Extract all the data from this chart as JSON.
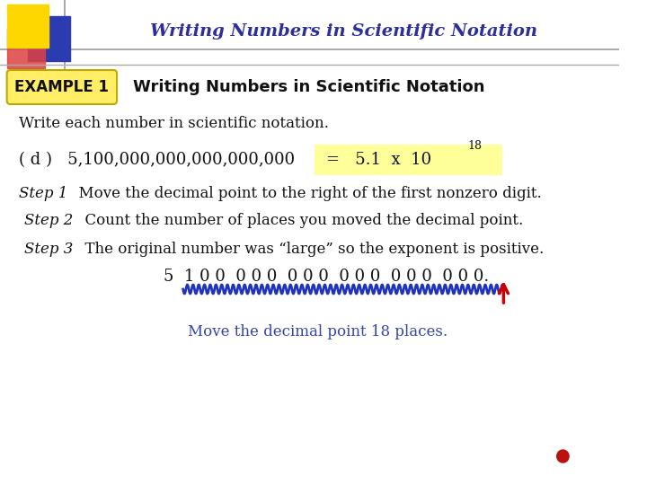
{
  "title": "Writing Numbers in Scientific Notation",
  "title_color": "#2E2E9A",
  "title_fontsize": 14,
  "bg_color": "#FFFFFF",
  "example_label": "EXAMPLE 1",
  "example_label_bg": "#FFEE66",
  "example_subtitle": "Writing Numbers in Scientific Notation",
  "write_prompt": "Write each number in scientific notation.",
  "problem_label": "( d )",
  "problem_number": "5,100,000,000,000,000,000",
  "result_box_bg": "#FFFF99",
  "result_prefix": "=   5.1  x  10",
  "exponent": "18",
  "step1_label": "Step 1",
  "step1_text": "  Move the decimal point to the right of the first nonzero digit.",
  "step2_label": "Step 2",
  "step2_text": "  Count the number of places you moved the decimal point.",
  "step3_label": "Step 3",
  "step3_text": "  The original number was “large” so the exponent is positive.",
  "number_display": "5  1 0 0  0 0 0  0 0 0  0 0 0  0 0 0  0 0 0.",
  "move_text": "Move the decimal point 18 places.",
  "dark_blue": "#1C1C8C",
  "medium_blue": "#3344AA",
  "blue_wave": "#2233BB",
  "red_arrow": "#CC0000",
  "red_dot": "#BB1111",
  "logo_yellow": "#FFD700",
  "logo_red": "#E04040",
  "logo_blue": "#2B3BB0",
  "line_color": "#999999",
  "black": "#111111"
}
